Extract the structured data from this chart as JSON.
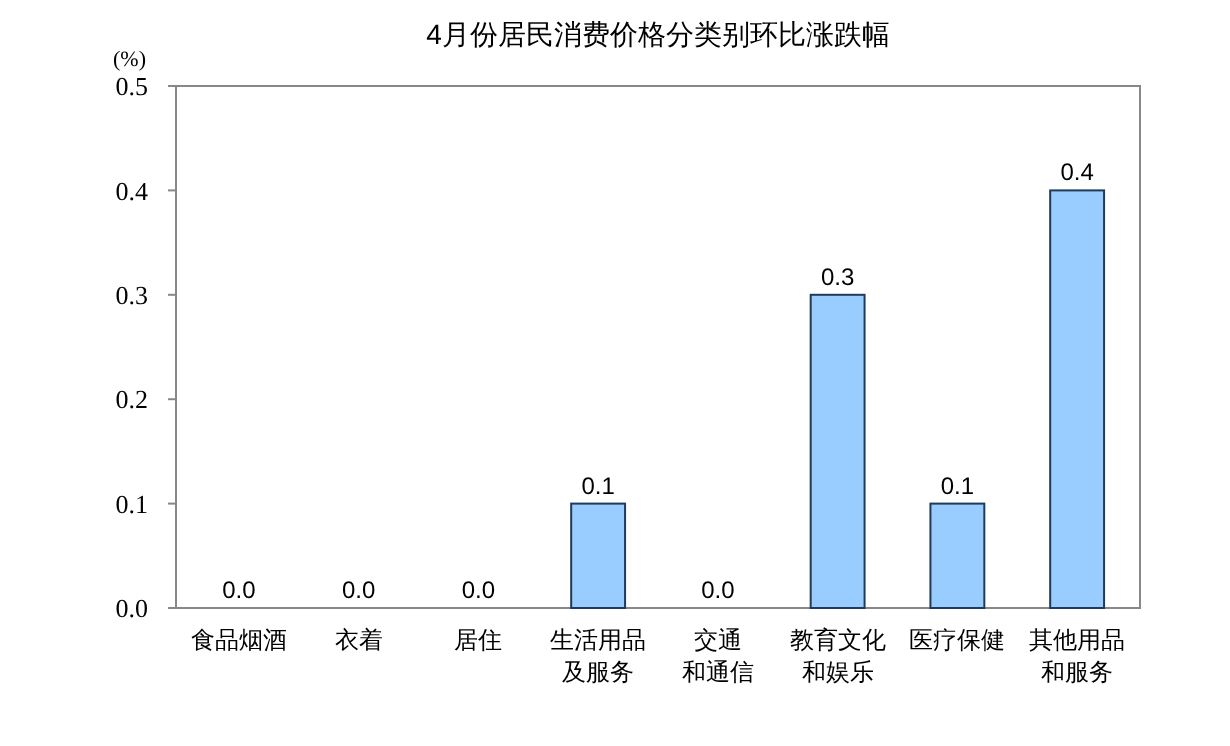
{
  "chart_data": {
    "type": "bar",
    "title": "4月份居民消费价格分类别环比涨跌幅",
    "ylabel": "(%)",
    "categories": [
      "食品烟酒",
      "衣着",
      "居住",
      "生活用品及服务",
      "交通和通信",
      "教育文化和娱乐",
      "医疗保健",
      "其他用品和服务"
    ],
    "values": [
      0.0,
      0.0,
      0.0,
      0.1,
      0.0,
      0.3,
      0.1,
      0.4
    ],
    "value_labels": [
      "0.0",
      "0.0",
      "0.0",
      "0.1",
      "0.0",
      "0.3",
      "0.1",
      "0.4"
    ],
    "color": "#99ccff",
    "ylim": [
      0,
      0.5
    ],
    "yticks": [
      {
        "value": 0,
        "label": "0.0"
      },
      {
        "value": 0.1,
        "label": "0.1"
      },
      {
        "value": 0.2,
        "label": "0.2"
      },
      {
        "value": 0.3,
        "label": "0.3"
      },
      {
        "value": 0.4,
        "label": "0.4"
      },
      {
        "value": 0.5,
        "label": "0.5"
      }
    ],
    "grid": false
  }
}
